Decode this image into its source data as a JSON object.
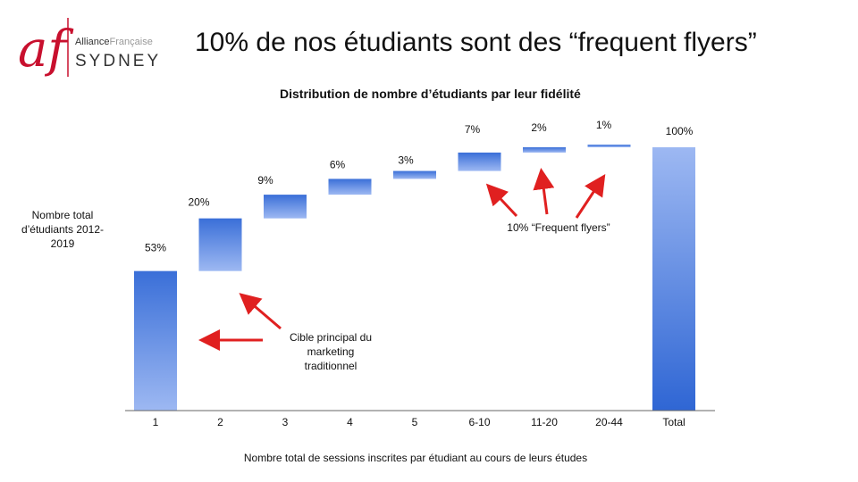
{
  "logo": {
    "letters": "af",
    "line1_a": "Alliance",
    "line1_b": "Française",
    "line2": "SYDNEY"
  },
  "title": "10% de nos étudiants sont des “frequent flyers”",
  "subtitle": "Distribution de nombre d’étudiants par leur fidélité",
  "side_label": "Nombre total d’étudiants 2012-2019",
  "annotations": {
    "flyers": "10% “Frequent flyers”",
    "target": "Cible principal du marketing traditionnel"
  },
  "colors": {
    "bar_top": "#3a6fd8",
    "bar_bottom": "#9db8f2",
    "arrow": "#e02020",
    "total_top": "#9db8f2",
    "total_bottom": "#2f66d4"
  },
  "chart_data": {
    "type": "bar",
    "subtype": "waterfall",
    "categories": [
      "1",
      "2",
      "3",
      "4",
      "5",
      "6-10",
      "11-20",
      "20-44",
      "Total"
    ],
    "values": [
      53,
      20,
      9,
      6,
      3,
      7,
      2,
      1,
      100
    ],
    "value_labels": [
      "53%",
      "20%",
      "9%",
      "6%",
      "3%",
      "7%",
      "2%",
      "1%",
      "100%"
    ],
    "is_total": [
      false,
      false,
      false,
      false,
      false,
      false,
      false,
      false,
      true
    ],
    "xlabel": "Nombre total de sessions inscrites par étudiant au cours de leurs études",
    "ylabel": "",
    "ylim": [
      0,
      100
    ],
    "grid": false,
    "legend": "none"
  }
}
